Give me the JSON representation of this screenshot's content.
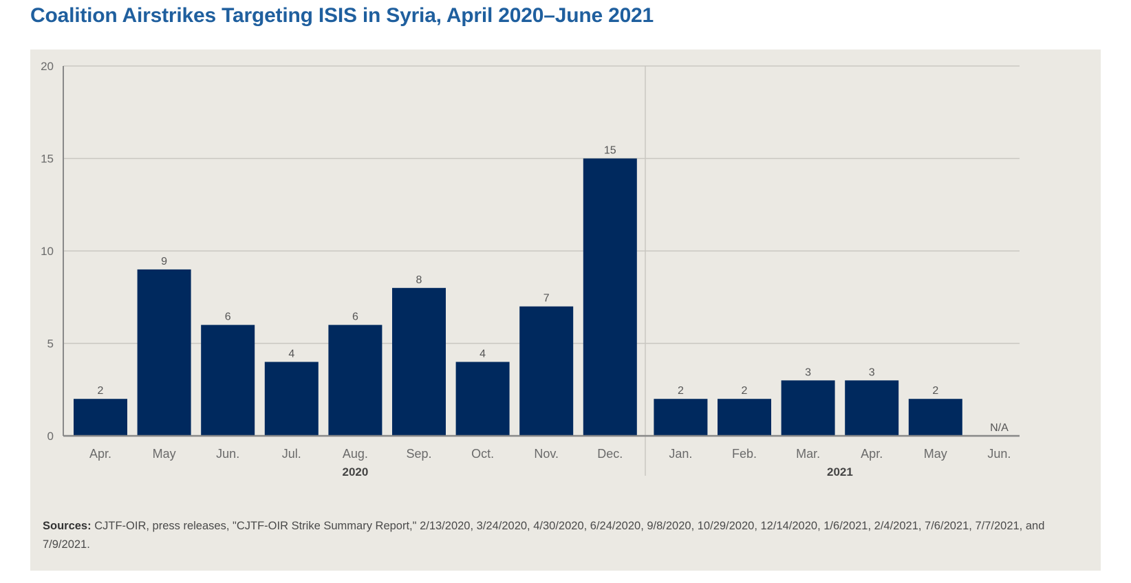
{
  "title": "Coalition Airstrikes Targeting ISIS in Syria, April 2020–June 2021",
  "colors": {
    "bar": "#00295e",
    "panel_bg": "#ebe9e3",
    "grid": "#c9c7c1",
    "axis": "#888888",
    "title": "#1f5f9e"
  },
  "chart_data": {
    "type": "bar",
    "categories": [
      "Apr.",
      "May",
      "Jun.",
      "Jul.",
      "Aug.",
      "Sep.",
      "Oct.",
      "Nov.",
      "Dec.",
      "Jan.",
      "Feb.",
      "Mar.",
      "Apr.",
      "May",
      "Jun."
    ],
    "values": [
      2,
      9,
      6,
      4,
      6,
      8,
      4,
      7,
      15,
      2,
      2,
      3,
      3,
      2,
      null
    ],
    "data_labels": [
      "2",
      "9",
      "6",
      "4",
      "6",
      "8",
      "4",
      "7",
      "15",
      "2",
      "2",
      "3",
      "3",
      "2",
      "N/A"
    ],
    "groups": [
      {
        "name": "2020",
        "count": 9
      },
      {
        "name": "2021",
        "count": 6
      }
    ],
    "ylim": [
      0,
      20
    ],
    "yticks": [
      0,
      5,
      10,
      15,
      20
    ],
    "grid": true
  },
  "sources": {
    "label": "Sources:",
    "text": "CJTF-OIR, press releases, \"CJTF-OIR Strike Summary Report,\" 2/13/2020, 3/24/2020, 4/30/2020, 6/24/2020, 9/8/2020, 10/29/2020, 12/14/2020, 1/6/2021, 2/4/2021, 7/6/2021, 7/7/2021, and 7/9/2021."
  }
}
